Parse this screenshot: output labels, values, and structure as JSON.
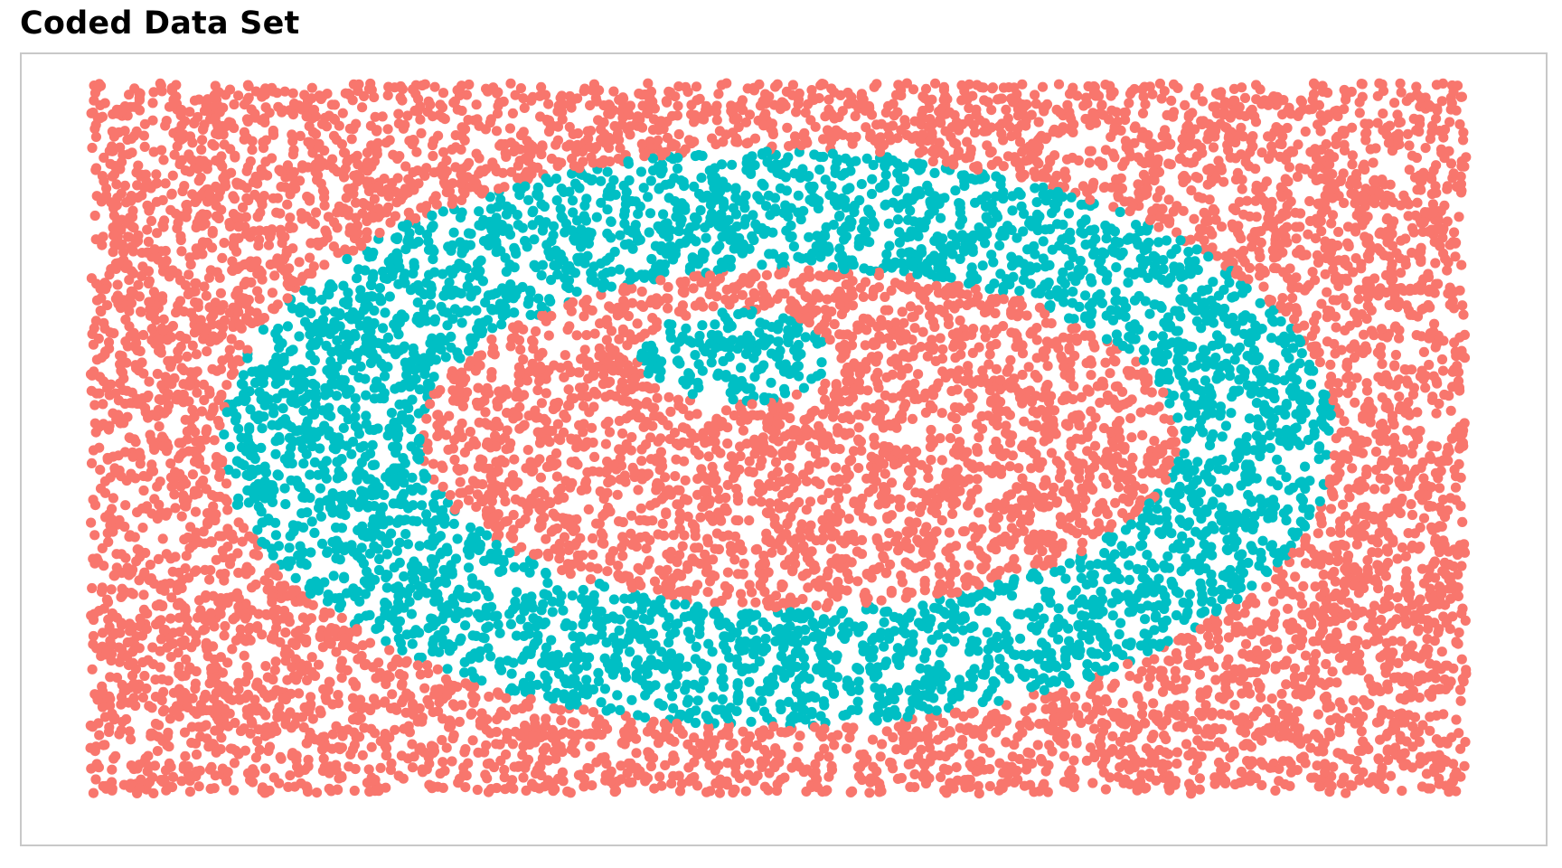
{
  "chart_data": {
    "type": "scatter",
    "title": "Coded Data Set",
    "xlabel": "",
    "ylabel": "",
    "grid": false,
    "legend": "none",
    "axes_visible": false,
    "xlim": [
      -1.0,
      1.0
    ],
    "ylim": [
      -1.0,
      1.0
    ],
    "colors": {
      "outer_class": "#f8766d",
      "ring_class": "#00bfc4"
    },
    "point_count_approx": 12000,
    "regions": [
      {
        "class": "ring_class",
        "shape": "ellipse",
        "center": [
          -0.06,
          0.23
        ],
        "radii": [
          0.14,
          0.13
        ]
      },
      {
        "class": "outer_class",
        "shape": "ellipse",
        "center": [
          0.03,
          0.0
        ],
        "radii": [
          0.55,
          0.48
        ]
      },
      {
        "class": "ring_class",
        "shape": "ellipse",
        "center": [
          0.0,
          0.0
        ],
        "radii": [
          0.81,
          0.81
        ]
      },
      {
        "class": "outer_class",
        "shape": "background",
        "xlim": [
          -1.0,
          1.0
        ],
        "ylim": [
          -1.0,
          1.0
        ]
      }
    ]
  }
}
